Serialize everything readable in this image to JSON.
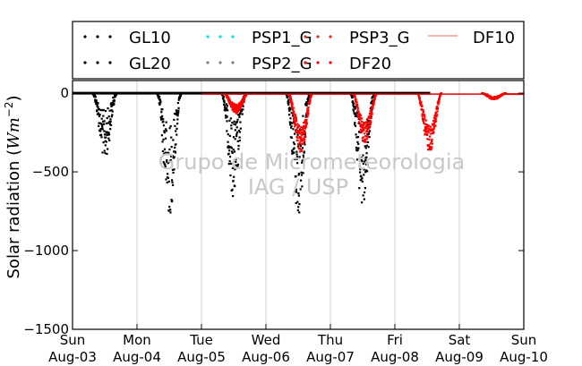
{
  "chart_data": {
    "type": "scatter",
    "ylabel": "Solar radiation (",
    "ylabel_unit": "Wm",
    "ylabel_exp": "−2",
    "ylabel_close": ")",
    "ylim": [
      -1500,
      80
    ],
    "yticks": [
      0,
      -500,
      -1000,
      -1500
    ],
    "ytick_labels": [
      "0",
      "−500",
      "−1000",
      "−1500"
    ],
    "xlim": [
      0,
      7
    ],
    "xticks": [
      {
        "x": 0,
        "day": "Sun",
        "date": "Aug-03"
      },
      {
        "x": 1,
        "day": "Mon",
        "date": "Aug-04"
      },
      {
        "x": 2,
        "day": "Tue",
        "date": "Aug-05"
      },
      {
        "x": 3,
        "day": "Wed",
        "date": "Aug-06"
      },
      {
        "x": 4,
        "day": "Thu",
        "date": "Aug-07"
      },
      {
        "x": 5,
        "day": "Fri",
        "date": "Aug-08"
      },
      {
        "x": 6,
        "day": "Sat",
        "date": "Aug-09"
      },
      {
        "x": 7,
        "day": "Sun",
        "date": "Aug-10"
      }
    ],
    "grid": "vertical",
    "legend_position": "top",
    "series": [
      {
        "name": "GL10",
        "color": "#000000",
        "marker": "dots"
      },
      {
        "name": "GL20",
        "color": "#000000",
        "marker": "dots"
      },
      {
        "name": "PSP1_G",
        "color": "#00e5e5",
        "marker": "dots"
      },
      {
        "name": "PSP2_G",
        "color": "#808080",
        "marker": "dots"
      },
      {
        "name": "PSP3_G",
        "color": "#e03010",
        "marker": "dots"
      },
      {
        "name": "DF20",
        "color": "#ff0000",
        "marker": "dots"
      },
      {
        "name": "DF10",
        "color": "#ff8080",
        "marker": "line"
      }
    ],
    "daily_minima": [
      {
        "series": "GL20",
        "day": 0,
        "min": -430
      },
      {
        "series": "GL20",
        "day": 1,
        "min": -790
      },
      {
        "series": "GL20",
        "day": 2,
        "min": -670
      },
      {
        "series": "DF20",
        "day": 2,
        "min": -130
      },
      {
        "series": "GL20",
        "day": 3,
        "min": -790
      },
      {
        "series": "DF20",
        "day": 3,
        "min": -380
      },
      {
        "series": "GL20",
        "day": 4,
        "min": -750
      },
      {
        "series": "DF20",
        "day": 4,
        "min": -320
      },
      {
        "series": "DF20",
        "day": 5,
        "min": -370
      },
      {
        "series": "DF20",
        "day": 6,
        "min": -40
      }
    ],
    "watermark": [
      "Grupo de Micrometeorologia",
      "IAG / USP"
    ]
  }
}
